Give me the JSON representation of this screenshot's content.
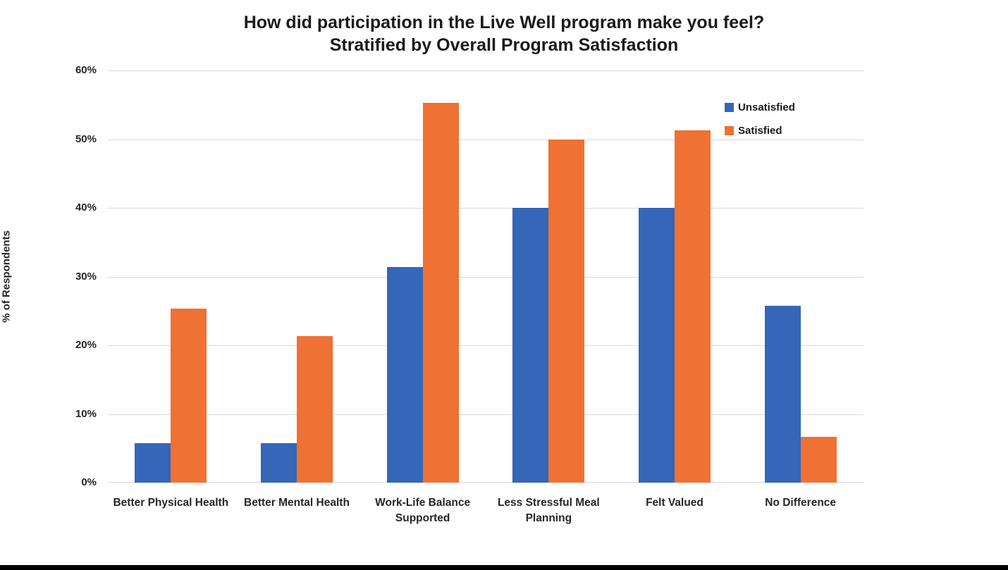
{
  "page": {
    "background": "#ffffff",
    "bottom_border_color": "#000000"
  },
  "chart_data": {
    "type": "bar",
    "title": "How did participation in the Live Well program make you feel?",
    "subtitle": "Stratified by Overall Program Satisfaction",
    "xlabel": "",
    "ylabel": "% of Respondents",
    "ylim": [
      0,
      60
    ],
    "grid": "horizontal",
    "gridline_color": "#d9d9d9",
    "legend_position": "top-right-inside",
    "yticks": [
      {
        "value": 0,
        "label": "0%"
      },
      {
        "value": 10,
        "label": "10%"
      },
      {
        "value": 20,
        "label": "20%"
      },
      {
        "value": 30,
        "label": "30%"
      },
      {
        "value": 40,
        "label": "40%"
      },
      {
        "value": 50,
        "label": "50%"
      },
      {
        "value": 60,
        "label": "60%"
      }
    ],
    "categories": [
      "Better Physical Health",
      "Better Mental Health",
      "Work-Life Balance Supported",
      "Less Stressful Meal Planning",
      "Felt Valued",
      "No Difference"
    ],
    "series": [
      {
        "name": "Unsatisfied",
        "color": "#3566b7",
        "values": [
          5.7,
          5.7,
          31.4,
          40,
          40,
          25.7
        ]
      },
      {
        "name": "Satisfied",
        "color": "#ef7133",
        "values": [
          25.3,
          21.3,
          55.3,
          50,
          51.3,
          6.7
        ]
      }
    ]
  }
}
